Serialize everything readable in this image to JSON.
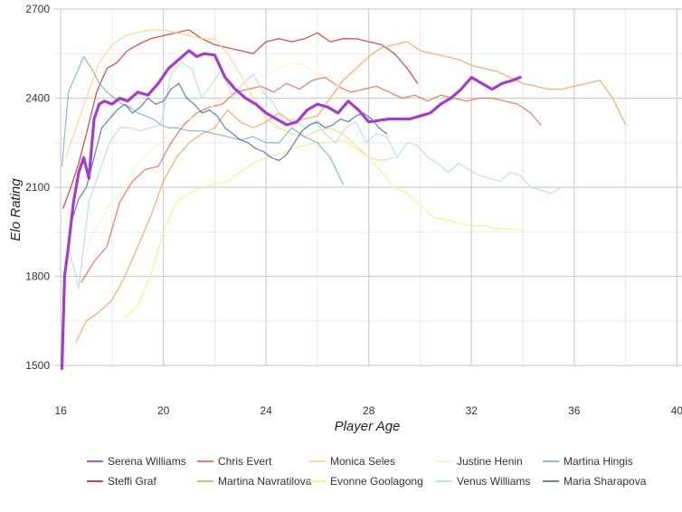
{
  "chart_data": {
    "type": "line",
    "title": "",
    "xlabel": "Player Age",
    "ylabel": "Elo Rating",
    "xlim": [
      16,
      40
    ],
    "ylim": [
      1500,
      2700
    ],
    "x_ticks": [
      16,
      20,
      24,
      28,
      32,
      36,
      40
    ],
    "y_ticks": [
      1500,
      1800,
      2100,
      2400,
      2700
    ],
    "grid": true,
    "legend_position": "bottom",
    "series": [
      {
        "name": "Serena Williams",
        "color": "#a23fc4",
        "highlight": true,
        "x": [
          16.05,
          16.15,
          16.3,
          16.5,
          16.7,
          16.9,
          17.1,
          17.3,
          17.5,
          17.7,
          18.0,
          18.3,
          18.6,
          19.0,
          19.4,
          19.8,
          20.2,
          20.6,
          21.0,
          21.3,
          21.6,
          22.0,
          22.4,
          22.8,
          23.2,
          23.6,
          24.0,
          24.4,
          24.8,
          25.2,
          25.6,
          26.0,
          26.4,
          26.8,
          27.2,
          27.6,
          28.0,
          28.4,
          28.8,
          29.2,
          29.6,
          30.0,
          30.4,
          30.8,
          31.2,
          31.6,
          32.0,
          32.4,
          32.8,
          33.2,
          33.6,
          33.9
        ],
        "y": [
          1490,
          1800,
          1900,
          2050,
          2150,
          2200,
          2130,
          2330,
          2380,
          2390,
          2380,
          2400,
          2390,
          2420,
          2410,
          2450,
          2500,
          2530,
          2560,
          2540,
          2550,
          2545,
          2470,
          2430,
          2400,
          2380,
          2350,
          2330,
          2310,
          2320,
          2360,
          2380,
          2370,
          2350,
          2390,
          2360,
          2320,
          2325,
          2330,
          2330,
          2330,
          2340,
          2350,
          2380,
          2400,
          2430,
          2470,
          2450,
          2430,
          2450,
          2460,
          2470
        ]
      },
      {
        "name": "Steffi Graf",
        "color": "#c8323a",
        "x": [
          16.1,
          16.4,
          16.7,
          17.0,
          17.4,
          17.8,
          18.2,
          18.6,
          19.0,
          19.5,
          20.0,
          20.5,
          21.0,
          21.5,
          22.0,
          22.5,
          23.0,
          23.5,
          24.0,
          24.5,
          25.0,
          25.5,
          26.0,
          26.5,
          27.0,
          27.5,
          28.0,
          28.5,
          29.0,
          29.5,
          29.9
        ],
        "y": [
          2030,
          2100,
          2180,
          2280,
          2420,
          2500,
          2520,
          2560,
          2580,
          2600,
          2610,
          2620,
          2630,
          2600,
          2580,
          2570,
          2560,
          2550,
          2590,
          2600,
          2590,
          2600,
          2620,
          2590,
          2600,
          2600,
          2590,
          2580,
          2550,
          2500,
          2450
        ]
      },
      {
        "name": "Chris Evert",
        "color": "#e26d5a",
        "x": [
          16.8,
          17.3,
          17.8,
          18.3,
          18.8,
          19.3,
          19.8,
          20.3,
          20.8,
          21.3,
          21.8,
          22.3,
          22.8,
          23.3,
          23.8,
          24.3,
          24.8,
          25.3,
          25.8,
          26.3,
          26.8,
          27.3,
          27.8,
          28.3,
          28.8,
          29.3,
          29.8,
          30.3,
          30.8,
          31.3,
          31.8,
          32.3,
          32.8,
          33.3,
          33.8,
          34.3,
          34.7
        ],
        "y": [
          1780,
          1850,
          1900,
          2050,
          2120,
          2160,
          2170,
          2250,
          2310,
          2350,
          2370,
          2380,
          2420,
          2430,
          2440,
          2420,
          2450,
          2430,
          2460,
          2470,
          2440,
          2420,
          2430,
          2440,
          2420,
          2400,
          2410,
          2390,
          2410,
          2400,
          2390,
          2400,
          2400,
          2390,
          2380,
          2350,
          2310
        ]
      },
      {
        "name": "Martina Navratilova",
        "color": "#f5a15e",
        "x": [
          16.6,
          17.0,
          17.5,
          18.0,
          18.5,
          19.0,
          19.5,
          20.0,
          20.5,
          21.0,
          21.5,
          22.0,
          22.5,
          23.0,
          23.5,
          24.0,
          24.5,
          25.0,
          25.5,
          26.0,
          26.5,
          27.0,
          27.5,
          28.0,
          28.5,
          29.0,
          29.5,
          30.0,
          30.5,
          31.0,
          31.5,
          32.0,
          32.5,
          33.0,
          33.5,
          34.0,
          34.5,
          35.0,
          35.5,
          36.0,
          36.5,
          37.0,
          37.5,
          38.0
        ],
        "y": [
          1580,
          1650,
          1680,
          1720,
          1800,
          1900,
          2000,
          2120,
          2200,
          2250,
          2280,
          2300,
          2360,
          2320,
          2300,
          2320,
          2350,
          2320,
          2330,
          2340,
          2400,
          2460,
          2500,
          2540,
          2570,
          2580,
          2590,
          2560,
          2550,
          2540,
          2530,
          2510,
          2500,
          2490,
          2470,
          2450,
          2440,
          2430,
          2430,
          2440,
          2450,
          2460,
          2400,
          2310
        ]
      },
      {
        "name": "Monica Seles",
        "color": "#fdd28a",
        "x": [
          16.2,
          16.6,
          17.0,
          17.5,
          18.0,
          18.5,
          19.0,
          19.5,
          20.0,
          20.5,
          21.0,
          21.5,
          22.0,
          22.5,
          23.0,
          23.5,
          24.0,
          24.5,
          25.0,
          25.5,
          26.0,
          26.5,
          27.0,
          27.5,
          28.0,
          28.5,
          29.0
        ],
        "y": [
          2200,
          2300,
          2400,
          2520,
          2580,
          2610,
          2620,
          2630,
          2630,
          2620,
          2610,
          2600,
          2600,
          2550,
          2480,
          2400,
          2330,
          2300,
          2280,
          2270,
          2290,
          2300,
          2280,
          2240,
          2200,
          2190,
          2200
        ]
      },
      {
        "name": "Evonne Goolagong",
        "color": "#f5f08a",
        "x": [
          18.5,
          19.0,
          19.5,
          20.0,
          20.5,
          21.0,
          21.5,
          22.0,
          22.5,
          23.0,
          23.5,
          24.0,
          24.5,
          25.0,
          25.5,
          26.0,
          26.5,
          27.0,
          27.5,
          28.0,
          28.5,
          29.0,
          29.5,
          30.0,
          30.5,
          31.0,
          31.5,
          32.0,
          32.5,
          33.0,
          33.5,
          34.0
        ],
        "y": [
          1660,
          1700,
          1800,
          1950,
          2050,
          2080,
          2100,
          2110,
          2120,
          2150,
          2180,
          2200,
          2210,
          2230,
          2240,
          2250,
          2250,
          2260,
          2230,
          2200,
          2150,
          2100,
          2080,
          2040,
          2000,
          1990,
          1980,
          1970,
          1970,
          1960,
          1960,
          1955
        ]
      },
      {
        "name": "Justine Henin",
        "color": "#f2f2d0",
        "x": [
          17.0,
          17.5,
          18.0,
          18.5,
          19.0,
          19.5,
          20.0,
          20.5,
          21.0,
          21.5,
          22.0,
          22.5,
          23.0,
          23.5,
          24.0,
          24.5,
          25.0,
          25.5,
          26.0,
          26.5,
          27.0,
          27.5,
          28.0
        ],
        "y": [
          1900,
          1980,
          2050,
          2100,
          2180,
          2220,
          2260,
          2300,
          2330,
          2340,
          2380,
          2410,
          2440,
          2460,
          2480,
          2500,
          2520,
          2510,
          2480,
          2470,
          2420,
          2360,
          2300
        ]
      },
      {
        "name": "Venus Williams",
        "color": "#b6dcea",
        "x": [
          16.3,
          16.7,
          17.1,
          17.5,
          17.9,
          18.3,
          18.7,
          19.1,
          19.5,
          19.9,
          20.3,
          20.7,
          21.1,
          21.5,
          21.9,
          22.3,
          22.7,
          23.1,
          23.5,
          23.9,
          24.3,
          24.7,
          25.1,
          25.5,
          25.9,
          26.3,
          26.7,
          27.1,
          27.5,
          27.9,
          28.3,
          28.7,
          29.1,
          29.5,
          29.9,
          30.3,
          30.7,
          31.1,
          31.5,
          31.9,
          32.3,
          32.7,
          33.1,
          33.5,
          33.9,
          34.3,
          34.7,
          35.1,
          35.5
        ],
        "y": [
          1900,
          1760,
          2050,
          2150,
          2250,
          2300,
          2300,
          2290,
          2300,
          2310,
          2480,
          2520,
          2500,
          2400,
          2450,
          2500,
          2400,
          2450,
          2480,
          2420,
          2380,
          2320,
          2330,
          2300,
          2320,
          2280,
          2250,
          2300,
          2320,
          2250,
          2280,
          2270,
          2200,
          2250,
          2240,
          2200,
          2180,
          2150,
          2180,
          2160,
          2140,
          2130,
          2120,
          2150,
          2140,
          2100,
          2090,
          2080,
          2100
        ]
      },
      {
        "name": "Martina Hingis",
        "color": "#7fb0cc",
        "x": [
          16.05,
          16.3,
          16.6,
          16.9,
          17.2,
          17.5,
          17.8,
          18.1,
          18.4,
          18.7,
          19.0,
          19.3,
          19.6,
          19.9,
          20.2,
          20.5,
          21.0,
          21.5,
          22.0,
          22.5,
          23.0,
          23.5,
          24.0,
          24.5,
          25.0,
          25.5,
          26.0,
          26.5,
          27.0
        ],
        "y": [
          2170,
          2420,
          2480,
          2540,
          2500,
          2450,
          2420,
          2400,
          2380,
          2370,
          2350,
          2340,
          2330,
          2310,
          2300,
          2300,
          2290,
          2290,
          2280,
          2270,
          2260,
          2270,
          2250,
          2250,
          2300,
          2270,
          2250,
          2200,
          2110
        ]
      },
      {
        "name": "Maria Sharapova",
        "color": "#4f72a8",
        "x": [
          16.4,
          16.7,
          17.0,
          17.3,
          17.6,
          17.9,
          18.2,
          18.5,
          18.8,
          19.1,
          19.4,
          19.7,
          20.0,
          20.3,
          20.6,
          20.9,
          21.2,
          21.5,
          21.8,
          22.1,
          22.4,
          22.7,
          23.0,
          23.3,
          23.6,
          23.9,
          24.2,
          24.5,
          24.8,
          25.1,
          25.4,
          25.7,
          26.0,
          26.3,
          26.6,
          26.9,
          27.2,
          27.5,
          27.8,
          28.1,
          28.4,
          28.7
        ],
        "y": [
          1980,
          2060,
          2100,
          2200,
          2300,
          2330,
          2360,
          2380,
          2350,
          2370,
          2400,
          2380,
          2390,
          2430,
          2450,
          2400,
          2380,
          2350,
          2360,
          2340,
          2300,
          2280,
          2260,
          2250,
          2230,
          2220,
          2200,
          2190,
          2210,
          2250,
          2290,
          2310,
          2320,
          2300,
          2310,
          2330,
          2320,
          2340,
          2350,
          2330,
          2300,
          2280
        ]
      }
    ]
  }
}
